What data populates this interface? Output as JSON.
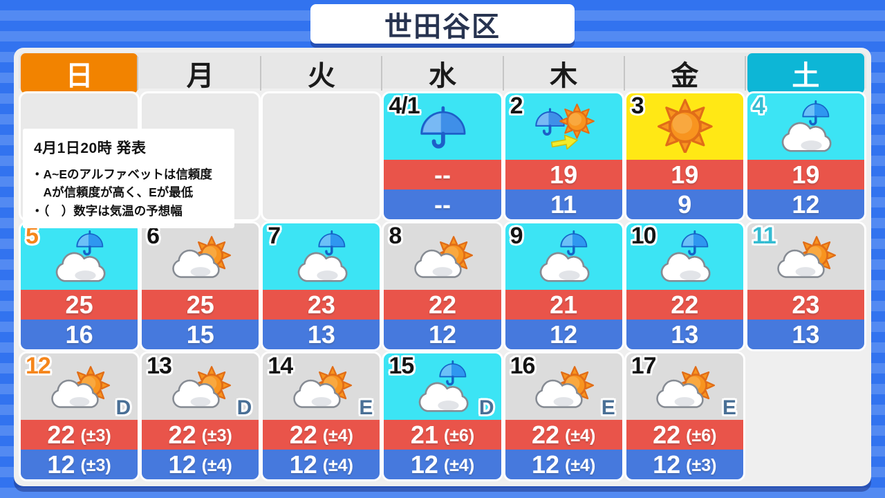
{
  "title": "世田谷区",
  "weekdays": [
    {
      "label": "日",
      "style": "sunday"
    },
    {
      "label": "月",
      "style": "normal"
    },
    {
      "label": "火",
      "style": "normal"
    },
    {
      "label": "水",
      "style": "normal"
    },
    {
      "label": "木",
      "style": "normal"
    },
    {
      "label": "金",
      "style": "normal"
    },
    {
      "label": "土",
      "style": "saturday"
    }
  ],
  "notice": {
    "issued": "4月1日20時 発表",
    "lines": [
      "・A~Eのアルファベットは信頼度",
      "　Aが信頼度が高く、Eが最低",
      "・（　）数字は気温の予想幅"
    ]
  },
  "layout": {
    "leading_empty_days": 3
  },
  "days": [
    {
      "date": "4/1",
      "num_style": "normal",
      "sky": "rain",
      "bg": "cyan",
      "high": "--",
      "low": "--"
    },
    {
      "date": "2",
      "num_style": "normal",
      "sky": "rain_then_sun",
      "bg": "cyan",
      "high": "19",
      "low": "11"
    },
    {
      "date": "3",
      "num_style": "normal",
      "sky": "sunny",
      "bg": "yellow",
      "high": "19",
      "low": "9"
    },
    {
      "date": "4",
      "num_style": "saturday",
      "sky": "cloud_rain",
      "bg": "cyan",
      "high": "19",
      "low": "12"
    },
    {
      "date": "5",
      "num_style": "sunday",
      "sky": "cloud_rain",
      "bg": "cyan",
      "high": "25",
      "low": "16"
    },
    {
      "date": "6",
      "num_style": "normal",
      "sky": "cloud_sun",
      "bg": "gray",
      "high": "25",
      "low": "15"
    },
    {
      "date": "7",
      "num_style": "normal",
      "sky": "cloud_rain",
      "bg": "cyan",
      "high": "23",
      "low": "13"
    },
    {
      "date": "8",
      "num_style": "normal",
      "sky": "cloud_sun",
      "bg": "gray",
      "high": "22",
      "low": "12"
    },
    {
      "date": "9",
      "num_style": "normal",
      "sky": "cloud_rain",
      "bg": "cyan",
      "high": "21",
      "low": "12"
    },
    {
      "date": "10",
      "num_style": "normal",
      "sky": "cloud_rain",
      "bg": "cyan",
      "high": "22",
      "low": "13"
    },
    {
      "date": "11",
      "num_style": "saturday",
      "sky": "cloud_sun",
      "bg": "gray",
      "high": "23",
      "low": "13"
    },
    {
      "date": "12",
      "num_style": "sunday",
      "sky": "cloud_sun",
      "bg": "gray",
      "reliability": "D",
      "high": "22",
      "high_range": "(±3)",
      "low": "12",
      "low_range": "(±3)"
    },
    {
      "date": "13",
      "num_style": "normal",
      "sky": "cloud_sun",
      "bg": "gray",
      "reliability": "D",
      "high": "22",
      "high_range": "(±3)",
      "low": "12",
      "low_range": "(±4)"
    },
    {
      "date": "14",
      "num_style": "normal",
      "sky": "cloud_sun",
      "bg": "gray",
      "reliability": "E",
      "high": "22",
      "high_range": "(±4)",
      "low": "12",
      "low_range": "(±4)"
    },
    {
      "date": "15",
      "num_style": "normal",
      "sky": "cloud_rain",
      "bg": "cyan",
      "reliability": "D",
      "high": "21",
      "high_range": "(±6)",
      "low": "12",
      "low_range": "(±4)"
    },
    {
      "date": "16",
      "num_style": "normal",
      "sky": "cloud_sun",
      "bg": "gray",
      "reliability": "E",
      "high": "22",
      "high_range": "(±4)",
      "low": "12",
      "low_range": "(±4)"
    },
    {
      "date": "17",
      "num_style": "normal",
      "sky": "cloud_sun",
      "bg": "gray",
      "reliability": "E",
      "high": "22",
      "high_range": "(±6)",
      "low": "12",
      "low_range": "(±3)"
    }
  ],
  "colors": {
    "background_blue": "#3273ef",
    "panel_gray": "#efefef",
    "header_gray": "#e7e7e7",
    "sunday_orange": "#f28300",
    "saturday_cyan": "#0db6d6",
    "sunday_number": "#f5861c",
    "saturday_number": "#35bcd2",
    "sky_cyan": "#3ce4f4",
    "sky_yellow": "#ffe815",
    "sky_gray": "#dcdcdc",
    "high_band_red": "#e9544a",
    "low_band_blue": "#4679dd",
    "reliability_blue": "#4a7096",
    "title_navy": "#273350"
  }
}
